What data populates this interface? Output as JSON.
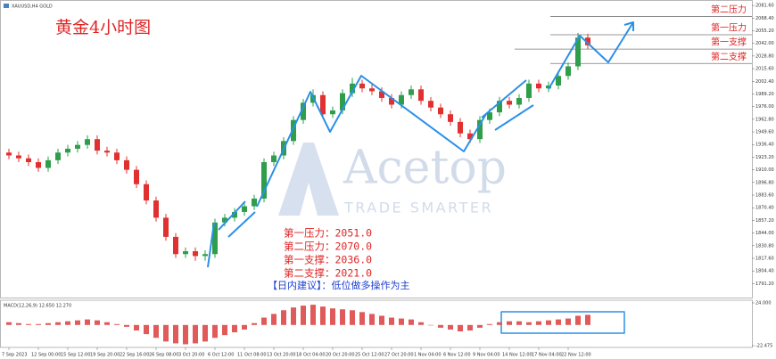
{
  "chart_data": [
    {
      "type": "candlestick",
      "title": "黄金4小时图",
      "subtitle": "XAUUSD,H4  GOLD",
      "watermark": {
        "brand": "Acetop",
        "tagline": "TRADE SMARTER"
      },
      "categories": [
        "7 Sep 2023",
        null,
        null,
        "12 Sep 00:00",
        null,
        null,
        "15 Sep 12:00",
        null,
        null,
        "19 Sep 20:00",
        null,
        null,
        "22 Sep 16:00",
        null,
        null,
        "26 Sep 08:00",
        null,
        null,
        "3 Oct 20:00",
        null,
        null,
        "6 Oct 12:00",
        null,
        null,
        "11 Oct 08:00",
        null,
        null,
        "13 Oct 20:00",
        null,
        null,
        "18 Oct 04:00",
        null,
        null,
        "20 Oct 20:00",
        null,
        null,
        "25 Oct 12:00",
        null,
        null,
        "27 Oct 20:00",
        null,
        null,
        "1 Nov 04:00",
        null,
        null,
        "6 Nov 12:00",
        null,
        null,
        "9 Nov 04:00",
        null,
        null,
        "14 Nov 12:00",
        null,
        null,
        "17 Nov 04:00",
        null,
        null,
        "22 Nov 12:00",
        null,
        null
      ],
      "open": [
        1928,
        1925,
        1922,
        1918,
        1912,
        1920,
        1928,
        1932,
        1936,
        1942,
        1930,
        1928,
        1920,
        1910,
        1895,
        1878,
        1860,
        1840,
        1822,
        1825,
        1820,
        1822,
        1855,
        1860,
        1866,
        1872,
        1880,
        1918,
        1925,
        1940,
        1962,
        1980,
        1988,
        1968,
        1972,
        1990,
        2000,
        1995,
        1992,
        1985,
        1978,
        1988,
        1994,
        1982,
        1975,
        1968,
        1960,
        1948,
        1942,
        1962,
        1970,
        1982,
        1978,
        1985,
        2000,
        1995,
        1998,
        2008,
        2018,
        2048
      ],
      "high": [
        1932,
        1929,
        1926,
        1922,
        1924,
        1932,
        1936,
        1940,
        1946,
        1946,
        1934,
        1932,
        1924,
        1914,
        1899,
        1882,
        1864,
        1844,
        1829,
        1829,
        1826,
        1859,
        1864,
        1870,
        1876,
        1884,
        1922,
        1929,
        1944,
        1966,
        1984,
        1994,
        1992,
        1976,
        1994,
        2006,
        2004,
        1999,
        1996,
        1989,
        1992,
        1998,
        1998,
        1986,
        1979,
        1972,
        1964,
        1952,
        1966,
        1974,
        1986,
        1986,
        1989,
        2004,
        2004,
        2002,
        2012,
        2022,
        2053,
        2052
      ],
      "low": [
        1921,
        1918,
        1914,
        1908,
        1908,
        1916,
        1924,
        1928,
        1932,
        1926,
        1924,
        1916,
        1906,
        1891,
        1874,
        1856,
        1836,
        1818,
        1818,
        1815,
        1815,
        1818,
        1851,
        1856,
        1862,
        1868,
        1876,
        1914,
        1921,
        1936,
        1958,
        1976,
        1964,
        1964,
        1968,
        1986,
        1991,
        1988,
        1981,
        1974,
        1974,
        1984,
        1978,
        1971,
        1964,
        1956,
        1944,
        1938,
        1938,
        1958,
        1966,
        1974,
        1974,
        1981,
        1991,
        1991,
        1994,
        2004,
        2014,
        2036
      ],
      "close": [
        1925,
        1922,
        1918,
        1912,
        1920,
        1928,
        1932,
        1936,
        1942,
        1930,
        1928,
        1920,
        1910,
        1895,
        1878,
        1860,
        1840,
        1822,
        1825,
        1820,
        1822,
        1855,
        1860,
        1866,
        1872,
        1880,
        1918,
        1925,
        1940,
        1962,
        1980,
        1988,
        1968,
        1972,
        1990,
        2000,
        1995,
        1992,
        1985,
        1978,
        1988,
        1994,
        1982,
        1975,
        1968,
        1960,
        1948,
        1942,
        1962,
        1970,
        1982,
        1978,
        1985,
        2000,
        1995,
        1998,
        2008,
        2018,
        2048,
        2040
      ],
      "up_color": "#2e9e4a",
      "down_color": "#e03030",
      "ylim": [
        1777.6,
        2085.4
      ],
      "yticks": [
        {
          "value": 2081.6,
          "label": "2081.60"
        },
        {
          "value": 2068.4,
          "label": "2068.40"
        },
        {
          "value": 2055.2,
          "label": "2055.20"
        },
        {
          "value": 2042,
          "label": "2042.00"
        },
        {
          "value": 2028.8,
          "label": "2028.80"
        },
        {
          "value": 2015.6,
          "label": "2015.60"
        },
        {
          "value": 2002.4,
          "label": "2002.40"
        },
        {
          "value": 1989.2,
          "label": "1989.20"
        },
        {
          "value": 1976,
          "label": "1976.00"
        },
        {
          "value": 1962.8,
          "label": "1962.80"
        },
        {
          "value": 1949.6,
          "label": "1949.60"
        },
        {
          "value": 1936.4,
          "label": "1936.40"
        },
        {
          "value": 1923.2,
          "label": "1923.20"
        },
        {
          "value": 1910,
          "label": "1910.00"
        },
        {
          "value": 1896.8,
          "label": "1896.80"
        },
        {
          "value": 1883.6,
          "label": "1883.60"
        },
        {
          "value": 1870.4,
          "label": "1870.40"
        },
        {
          "value": 1857.2,
          "label": "1857.20"
        },
        {
          "value": 1844,
          "label": "1844.00"
        },
        {
          "value": 1830.8,
          "label": "1830.80"
        },
        {
          "value": 1817.6,
          "label": "1817.60"
        },
        {
          "value": 1804.4,
          "label": "1804.40"
        },
        {
          "value": 1791.2,
          "label": "1791.20"
        }
      ],
      "levels": [
        {
          "name": "第二压力",
          "value": 2070
        },
        {
          "name": "第一压力",
          "value": 2051
        },
        {
          "name": "第一支撑",
          "value": 2036
        },
        {
          "name": "第二支撑",
          "value": 2021
        }
      ],
      "level_color": "#e02424",
      "annotations": [
        "第一压力：2051.0",
        "第二压力：2070.0",
        "第一支撑：2036.0",
        "第二支撑：2021.0"
      ],
      "advice": "【日内建议】：低位做多操作为主"
    },
    {
      "type": "bar",
      "title": "MACD(12,26,9) 12.650 12.270",
      "values": [
        3,
        2,
        1,
        1,
        2,
        3,
        4,
        5,
        6,
        5,
        3,
        1,
        -2,
        -6,
        -10,
        -14,
        -18,
        -20,
        -21,
        -20,
        -18,
        -14,
        -11,
        -8,
        -5,
        2,
        8,
        12,
        16,
        19,
        21,
        22,
        20,
        18,
        17,
        16,
        14,
        12,
        10,
        8,
        7,
        6,
        3,
        0,
        -3,
        -5,
        -7,
        -6,
        -3,
        1,
        3,
        4,
        4,
        3,
        4,
        5,
        6,
        7,
        10,
        11
      ],
      "color": "#e05a5a",
      "ylim": [
        -22.475,
        24
      ],
      "yticks": [
        {
          "value": 24,
          "label": "24.000"
        },
        {
          "value": -22.475,
          "label": "-22.475"
        }
      ]
    }
  ]
}
